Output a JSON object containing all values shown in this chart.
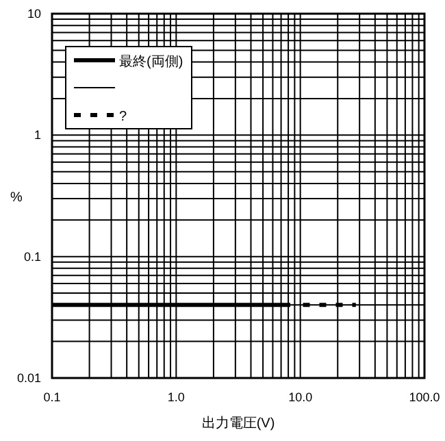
{
  "chart_data": {
    "type": "line",
    "xlabel": "出力電圧(V)",
    "ylabel": "%",
    "log": "xy",
    "xlim": [
      0.1,
      100
    ],
    "xticks": [
      0.1,
      {
        "value": 1,
        "label": "1.0"
      },
      {
        "value": 10,
        "label": "10.0"
      },
      {
        "value": 100,
        "label": "100.0"
      }
    ],
    "ylim": [
      0.01,
      10
    ],
    "yticks": [
      0.01,
      0.1,
      1,
      10
    ],
    "grid": true,
    "legend": "top left",
    "series": [
      {
        "name": "最終(両側)",
        "color": "#000000",
        "line_style": "solid",
        "x": [
          0.1,
          8.3
        ],
        "values": [
          0.04,
          0.04
        ]
      },
      {
        "color": "#000000",
        "line_style": "solid"
      },
      {
        "name": "?",
        "color": "#000000",
        "line_style": "dashed",
        "x": [
          10.5,
          28
        ],
        "values": [
          0.04,
          0.04
        ]
      }
    ]
  }
}
